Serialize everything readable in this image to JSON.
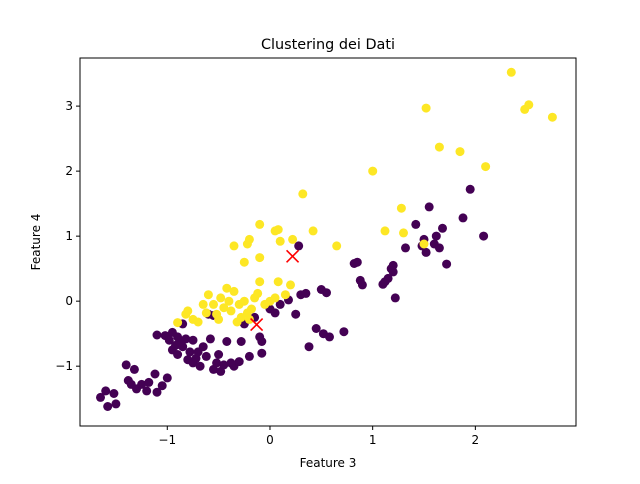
{
  "chart_data": {
    "type": "scatter",
    "title": "Clustering dei Dati",
    "xlabel": "Feature 3",
    "ylabel": "Feature 4",
    "xlim": [
      -1.85,
      2.98
    ],
    "ylim": [
      -1.92,
      3.74
    ],
    "xticks": [
      -1,
      0,
      1,
      2
    ],
    "yticks": [
      -1,
      0,
      1,
      2,
      3
    ],
    "colors": {
      "cluster_0": "#440154",
      "cluster_1": "#fde725",
      "centroid": "#ff0000"
    },
    "grid": false,
    "legend": "none",
    "series": [
      {
        "color": "#440154",
        "points": [
          [
            -1.65,
            -1.48
          ],
          [
            -1.6,
            -1.38
          ],
          [
            -1.58,
            -1.62
          ],
          [
            -1.52,
            -1.42
          ],
          [
            -1.5,
            -1.58
          ],
          [
            -1.4,
            -0.98
          ],
          [
            -1.38,
            -1.22
          ],
          [
            -1.35,
            -1.28
          ],
          [
            -1.32,
            -1.05
          ],
          [
            -1.3,
            -1.35
          ],
          [
            -1.25,
            -1.28
          ],
          [
            -1.2,
            -1.38
          ],
          [
            -1.18,
            -1.25
          ],
          [
            -1.12,
            -1.12
          ],
          [
            -1.1,
            -1.4
          ],
          [
            -1.05,
            -1.3
          ],
          [
            -1.0,
            -1.18
          ],
          [
            -1.1,
            -0.52
          ],
          [
            -1.02,
            -0.53
          ],
          [
            -0.98,
            -0.6
          ],
          [
            -0.95,
            -0.75
          ],
          [
            -0.9,
            -0.82
          ],
          [
            -0.92,
            -0.68
          ],
          [
            -0.88,
            -0.62
          ],
          [
            -0.85,
            -0.7
          ],
          [
            -0.82,
            -0.58
          ],
          [
            -0.8,
            -0.9
          ],
          [
            -0.78,
            -0.78
          ],
          [
            -0.75,
            -0.95
          ],
          [
            -0.72,
            -0.88
          ],
          [
            -0.7,
            -0.78
          ],
          [
            -0.68,
            -1.0
          ],
          [
            -0.65,
            -0.7
          ],
          [
            -0.62,
            -0.85
          ],
          [
            -0.58,
            -0.58
          ],
          [
            -0.55,
            -1.05
          ],
          [
            -0.52,
            -0.95
          ],
          [
            -0.5,
            -0.82
          ],
          [
            -0.48,
            -1.08
          ],
          [
            -0.45,
            -0.98
          ],
          [
            -0.42,
            -0.62
          ],
          [
            -0.38,
            -0.95
          ],
          [
            -0.35,
            -1.0
          ],
          [
            -0.3,
            -0.93
          ],
          [
            -0.28,
            -0.62
          ],
          [
            -0.25,
            -0.35
          ],
          [
            -0.2,
            -0.85
          ],
          [
            -0.15,
            -0.25
          ],
          [
            -0.1,
            -0.55
          ],
          [
            -0.08,
            -0.62
          ],
          [
            -0.08,
            -0.8
          ],
          [
            -0.75,
            -0.6
          ],
          [
            -0.6,
            -0.2
          ],
          [
            -0.55,
            -0.22
          ],
          [
            -0.85,
            -0.35
          ],
          [
            -0.95,
            -0.48
          ],
          [
            -0.9,
            -0.55
          ],
          [
            -0.0,
            -0.12
          ],
          [
            0.05,
            -0.18
          ],
          [
            0.1,
            -0.05
          ],
          [
            0.18,
            0.02
          ],
          [
            0.25,
            -0.2
          ],
          [
            0.3,
            0.1
          ],
          [
            0.35,
            0.12
          ],
          [
            0.38,
            -0.7
          ],
          [
            0.45,
            -0.42
          ],
          [
            0.5,
            0.18
          ],
          [
            0.52,
            -0.5
          ],
          [
            0.55,
            0.13
          ],
          [
            0.58,
            -0.55
          ],
          [
            0.72,
            -0.47
          ],
          [
            0.82,
            0.58
          ],
          [
            0.85,
            0.6
          ],
          [
            0.88,
            0.32
          ],
          [
            0.9,
            0.25
          ],
          [
            1.1,
            0.26
          ],
          [
            1.12,
            0.3
          ],
          [
            1.15,
            0.35
          ],
          [
            1.18,
            0.5
          ],
          [
            1.2,
            0.45
          ],
          [
            1.2,
            0.55
          ],
          [
            1.22,
            0.05
          ],
          [
            1.32,
            0.82
          ],
          [
            1.42,
            1.18
          ],
          [
            1.48,
            0.85
          ],
          [
            1.5,
            0.95
          ],
          [
            1.52,
            0.75
          ],
          [
            1.55,
            1.45
          ],
          [
            1.6,
            0.88
          ],
          [
            1.62,
            1.0
          ],
          [
            1.65,
            0.82
          ],
          [
            1.68,
            1.12
          ],
          [
            1.72,
            0.57
          ],
          [
            1.88,
            1.28
          ],
          [
            1.95,
            1.72
          ],
          [
            2.08,
            1.0
          ],
          [
            0.28,
            0.85
          ]
        ]
      },
      {
        "color": "#fde725",
        "points": [
          [
            -0.9,
            -0.33
          ],
          [
            -0.82,
            -0.2
          ],
          [
            -0.8,
            -0.15
          ],
          [
            -0.75,
            -0.28
          ],
          [
            -0.7,
            -0.32
          ],
          [
            -0.65,
            -0.05
          ],
          [
            -0.62,
            -0.18
          ],
          [
            -0.6,
            0.1
          ],
          [
            -0.55,
            -0.05
          ],
          [
            -0.52,
            -0.2
          ],
          [
            -0.5,
            -0.28
          ],
          [
            -0.48,
            0.05
          ],
          [
            -0.45,
            -0.1
          ],
          [
            -0.42,
            0.2
          ],
          [
            -0.4,
            0.0
          ],
          [
            -0.38,
            -0.15
          ],
          [
            -0.35,
            0.15
          ],
          [
            -0.32,
            -0.32
          ],
          [
            -0.3,
            -0.05
          ],
          [
            -0.28,
            -0.25
          ],
          [
            -0.25,
            -0.0
          ],
          [
            -0.22,
            -0.18
          ],
          [
            -0.2,
            -0.28
          ],
          [
            -0.18,
            -0.12
          ],
          [
            -0.15,
            0.05
          ],
          [
            -0.12,
            0.12
          ],
          [
            -0.1,
            0.3
          ],
          [
            -0.05,
            -0.05
          ],
          [
            0.0,
            0.0
          ],
          [
            0.05,
            0.05
          ],
          [
            0.08,
            0.3
          ],
          [
            0.15,
            0.1
          ],
          [
            0.2,
            0.25
          ],
          [
            -0.25,
            0.6
          ],
          [
            -0.22,
            0.88
          ],
          [
            -0.2,
            0.95
          ],
          [
            -0.35,
            0.85
          ],
          [
            -0.1,
            0.67
          ],
          [
            -0.1,
            1.18
          ],
          [
            0.05,
            1.08
          ],
          [
            0.08,
            1.1
          ],
          [
            0.1,
            0.92
          ],
          [
            0.22,
            0.95
          ],
          [
            0.32,
            1.65
          ],
          [
            0.42,
            1.08
          ],
          [
            0.65,
            0.85
          ],
          [
            1.0,
            2.0
          ],
          [
            1.12,
            1.08
          ],
          [
            1.28,
            1.43
          ],
          [
            1.3,
            1.05
          ],
          [
            1.5,
            0.88
          ],
          [
            1.52,
            2.97
          ],
          [
            1.65,
            2.37
          ],
          [
            1.85,
            2.3
          ],
          [
            2.1,
            2.07
          ],
          [
            2.35,
            3.52
          ],
          [
            2.48,
            2.95
          ],
          [
            2.52,
            3.02
          ],
          [
            2.75,
            2.83
          ]
        ]
      }
    ],
    "centroids": [
      [
        0.22,
        0.69
      ],
      [
        -0.13,
        -0.36
      ]
    ]
  }
}
